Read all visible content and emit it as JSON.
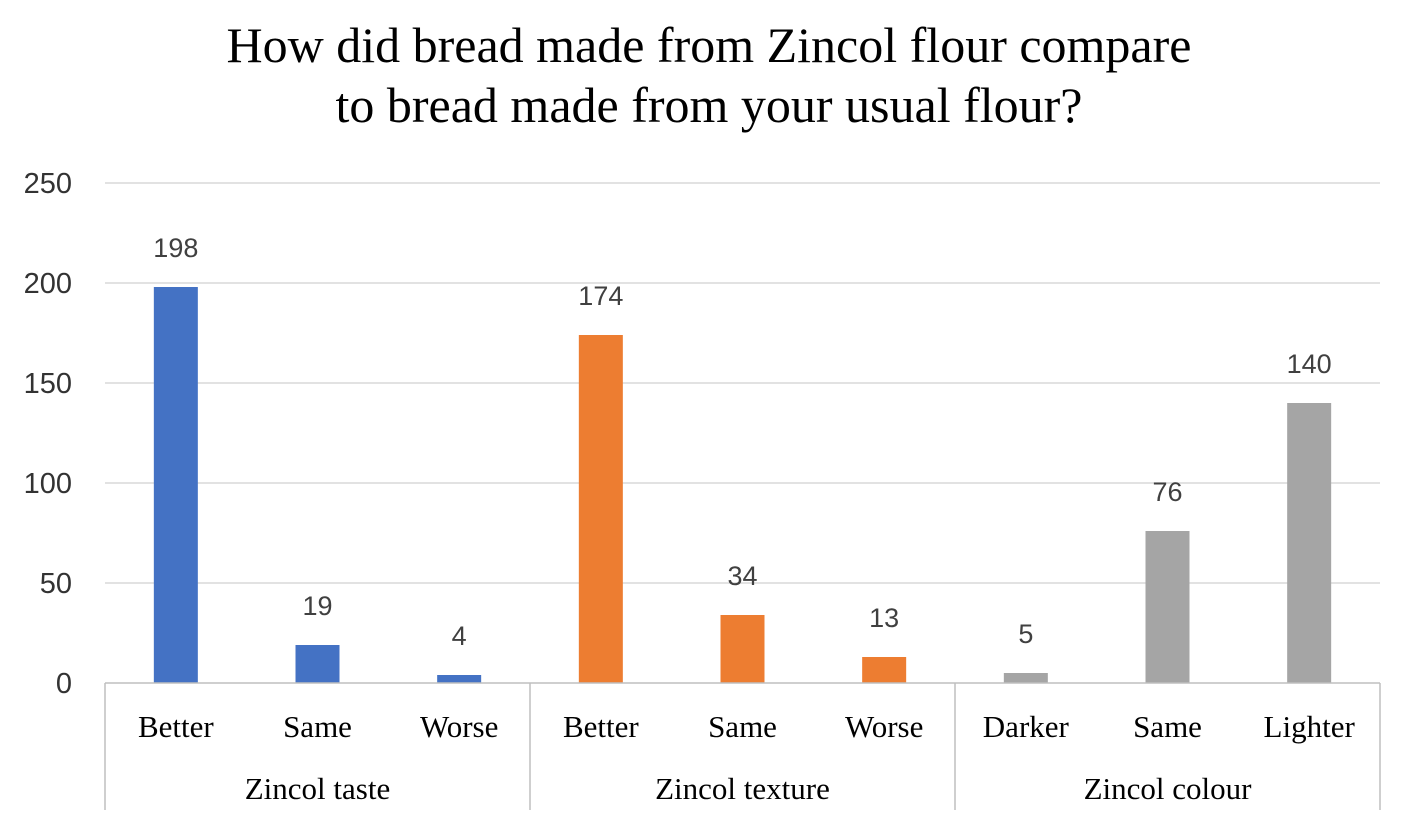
{
  "chart_data": {
    "type": "bar",
    "title_lines": [
      "How did bread made from Zincol flour compare",
      "to bread made from your usual flour?"
    ],
    "ylim": [
      0,
      250
    ],
    "yticks": [
      "0",
      "50",
      "100",
      "150",
      "200",
      "250"
    ],
    "ytick_values": [
      0,
      50,
      100,
      150,
      200,
      250
    ],
    "grid": true,
    "groups": [
      {
        "name": "Zincol taste",
        "color": "#4472c4",
        "categories": [
          "Better",
          "Same",
          "Worse"
        ],
        "values": [
          198,
          19,
          4
        ],
        "value_labels": [
          "198",
          "19",
          "4"
        ]
      },
      {
        "name": "Zincol texture",
        "color": "#ed7d31",
        "categories": [
          "Better",
          "Same",
          "Worse"
        ],
        "values": [
          174,
          34,
          13
        ],
        "value_labels": [
          "174",
          "34",
          "13"
        ]
      },
      {
        "name": "Zincol colour",
        "color": "#a5a5a5",
        "categories": [
          "Darker",
          "Same",
          "Lighter"
        ],
        "values": [
          5,
          76,
          140
        ],
        "value_labels": [
          "5",
          "76",
          "140"
        ]
      }
    ]
  }
}
